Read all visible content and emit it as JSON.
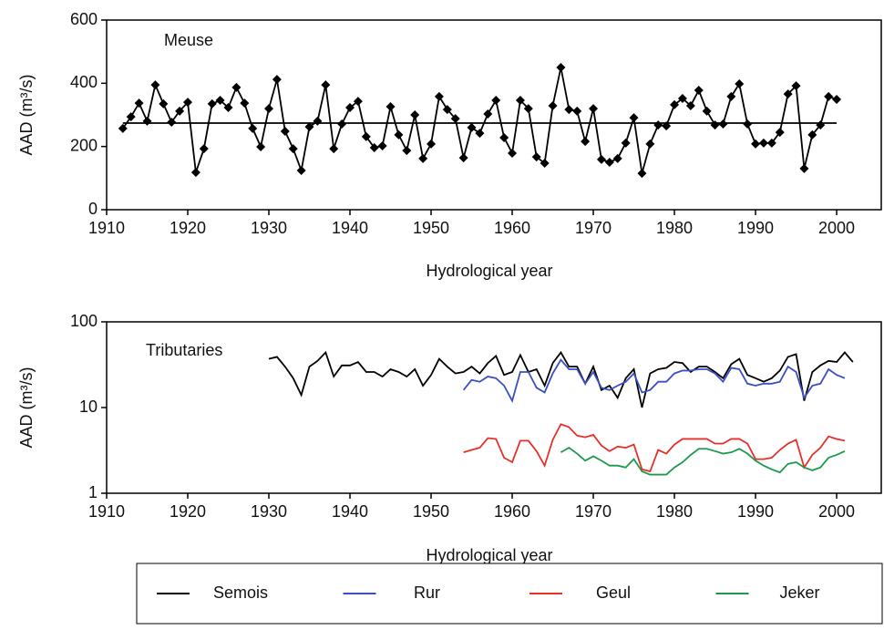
{
  "chart_data": [
    {
      "type": "line",
      "annotation": "Meuse",
      "xlabel": "Hydrological year",
      "ylabel": "AAD (m³/s)",
      "xlim": [
        1910,
        2005.5
      ],
      "ylim": [
        0,
        600
      ],
      "xticks": [
        1910,
        1920,
        1930,
        1940,
        1950,
        1960,
        1970,
        1980,
        1990,
        2000
      ],
      "yticks": [
        0,
        200,
        400,
        600
      ],
      "series": [
        {
          "color": "#000000",
          "marker": "diamond",
          "x": [
            1912,
            1913,
            1914,
            1915,
            1916,
            1917,
            1918,
            1919,
            1920,
            1921,
            1922,
            1923,
            1924,
            1925,
            1926,
            1927,
            1928,
            1929,
            1930,
            1931,
            1932,
            1933,
            1934,
            1935,
            1936,
            1937,
            1938,
            1939,
            1940,
            1941,
            1942,
            1943,
            1944,
            1945,
            1946,
            1947,
            1948,
            1949,
            1950,
            1951,
            1952,
            1953,
            1954,
            1955,
            1956,
            1957,
            1958,
            1959,
            1960,
            1961,
            1962,
            1963,
            1964,
            1965,
            1966,
            1967,
            1968,
            1969,
            1970,
            1971,
            1972,
            1973,
            1974,
            1975,
            1976,
            1977,
            1978,
            1979,
            1980,
            1981,
            1982,
            1983,
            1984,
            1985,
            1986,
            1987,
            1988,
            1989,
            1990,
            1991,
            1992,
            1993,
            1994,
            1995,
            1996,
            1997,
            1998,
            1999,
            2000
          ],
          "values": [
            257,
            294,
            337,
            280,
            395,
            335,
            277,
            312,
            340,
            118,
            193,
            335,
            346,
            323,
            387,
            337,
            257,
            199,
            320,
            412,
            248,
            193,
            124,
            262,
            280,
            395,
            193,
            271,
            323,
            343,
            231,
            196,
            202,
            326,
            237,
            187,
            300,
            162,
            208,
            358,
            317,
            288,
            164,
            260,
            242,
            303,
            346,
            228,
            179,
            346,
            320,
            167,
            147,
            329,
            450,
            317,
            312,
            216,
            320,
            159,
            150,
            162,
            211,
            291,
            115,
            208,
            268,
            265,
            332,
            352,
            329,
            378,
            312,
            268,
            271,
            358,
            398,
            271,
            208,
            211,
            211,
            245,
            366,
            392,
            130,
            237,
            268,
            358,
            349
          ]
        },
        {
          "color": "#000000",
          "marker": "none",
          "x": [
            1912,
            2000
          ],
          "values": [
            274,
            274
          ]
        }
      ]
    },
    {
      "type": "line",
      "annotation": "Tributaries",
      "xlabel": "Hydrological year",
      "ylabel": "AAD (m³/s)",
      "log_scale": true,
      "xlim": [
        1910,
        2005.5
      ],
      "ylim": [
        1,
        100
      ],
      "xticks": [
        1910,
        1920,
        1930,
        1940,
        1950,
        1960,
        1970,
        1980,
        1990,
        2000
      ],
      "yticks": [
        1,
        10,
        100
      ],
      "legend": "bottom",
      "series": [
        {
          "name": "Semois",
          "color": "#000000",
          "x": [
            1930,
            1931,
            1932,
            1933,
            1934,
            1935,
            1936,
            1937,
            1938,
            1939,
            1940,
            1941,
            1942,
            1943,
            1944,
            1945,
            1946,
            1947,
            1948,
            1949,
            1950,
            1951,
            1952,
            1953,
            1954,
            1955,
            1956,
            1957,
            1958,
            1959,
            1960,
            1961,
            1962,
            1963,
            1964,
            1965,
            1966,
            1967,
            1968,
            1969,
            1970,
            1971,
            1972,
            1973,
            1974,
            1975,
            1976,
            1977,
            1978,
            1979,
            1980,
            1981,
            1982,
            1983,
            1984,
            1985,
            1986,
            1987,
            1988,
            1989,
            1990,
            1991,
            1992,
            1993,
            1994,
            1995,
            1996,
            1997,
            1998,
            1999,
            2000,
            2001,
            2002
          ],
          "values": [
            37,
            39,
            30,
            22,
            14,
            30,
            35,
            44,
            23,
            31,
            31,
            34,
            26,
            26,
            23,
            28,
            26,
            23,
            28,
            18,
            24,
            37,
            30,
            25,
            26,
            30,
            25,
            33,
            40,
            24,
            26,
            41,
            26,
            28,
            18,
            33,
            44,
            30,
            30,
            19,
            30,
            16,
            18,
            13,
            22,
            28,
            10,
            25,
            28,
            29,
            34,
            33,
            26,
            30,
            30,
            26,
            22,
            32,
            37,
            24,
            22,
            20,
            22,
            27,
            39,
            42,
            12,
            26,
            31,
            35,
            34,
            44,
            34
          ]
        },
        {
          "name": "Rur",
          "color": "#3a4fc4",
          "x": [
            1954,
            1955,
            1956,
            1957,
            1958,
            1959,
            1960,
            1961,
            1962,
            1963,
            1964,
            1965,
            1966,
            1967,
            1968,
            1969,
            1970,
            1971,
            1972,
            1973,
            1974,
            1975,
            1976,
            1977,
            1978,
            1979,
            1980,
            1981,
            1982,
            1983,
            1984,
            1985,
            1986,
            1987,
            1988,
            1989,
            1990,
            1991,
            1992,
            1993,
            1994,
            1995,
            1996,
            1997,
            1998,
            1999,
            2000,
            2001
          ],
          "values": [
            16,
            21,
            20,
            23,
            22,
            18,
            12,
            26,
            26,
            17,
            15,
            25,
            36,
            28,
            28,
            19,
            26,
            17,
            16,
            18,
            20,
            25,
            15,
            16,
            20,
            20,
            25,
            27,
            27,
            28,
            28,
            25,
            20,
            29,
            28,
            19,
            18,
            19,
            19,
            20,
            30,
            26,
            13,
            18,
            19,
            28,
            24,
            22
          ]
        },
        {
          "name": "Geul",
          "color": "#e8302a",
          "x": [
            1954,
            1955,
            1956,
            1957,
            1958,
            1959,
            1960,
            1961,
            1962,
            1963,
            1964,
            1965,
            1966,
            1967,
            1968,
            1969,
            1970,
            1971,
            1972,
            1973,
            1974,
            1975,
            1976,
            1977,
            1978,
            1979,
            1980,
            1981,
            1982,
            1983,
            1984,
            1985,
            1986,
            1987,
            1988,
            1989,
            1990,
            1991,
            1992,
            1993,
            1994,
            1995,
            1996,
            1997,
            1998,
            1999,
            2000,
            2001
          ],
          "values": [
            3.0,
            3.2,
            3.4,
            4.4,
            4.3,
            2.6,
            2.3,
            4.1,
            4.1,
            3.1,
            2.1,
            4.2,
            6.4,
            5.9,
            4.7,
            4.5,
            4.8,
            3.6,
            3.1,
            3.5,
            3.4,
            3.7,
            1.9,
            1.8,
            3.2,
            2.9,
            3.7,
            4.3,
            4.3,
            4.3,
            4.3,
            3.8,
            3.8,
            4.3,
            4.3,
            3.8,
            2.5,
            2.5,
            2.6,
            3.2,
            3.8,
            4.2,
            2.0,
            2.8,
            3.4,
            4.6,
            4.3,
            4.1
          ]
        },
        {
          "name": "Jeker",
          "color": "#1e9a4e",
          "x": [
            1966,
            1967,
            1968,
            1969,
            1970,
            1971,
            1972,
            1973,
            1974,
            1975,
            1976,
            1977,
            1978,
            1979,
            1980,
            1981,
            1982,
            1983,
            1984,
            1985,
            1986,
            1987,
            1988,
            1989,
            1990,
            1991,
            1992,
            1993,
            1994,
            1995,
            1996,
            1997,
            1998,
            1999,
            2000,
            2001
          ],
          "values": [
            3.0,
            3.4,
            2.9,
            2.4,
            2.7,
            2.4,
            2.1,
            2.1,
            2.0,
            2.5,
            1.8,
            1.65,
            1.65,
            1.65,
            2.0,
            2.3,
            2.8,
            3.3,
            3.3,
            3.1,
            2.9,
            3.0,
            3.3,
            2.9,
            2.4,
            2.1,
            1.9,
            1.75,
            2.2,
            2.3,
            2.0,
            1.85,
            2.0,
            2.6,
            2.8,
            3.1
          ]
        }
      ]
    }
  ]
}
